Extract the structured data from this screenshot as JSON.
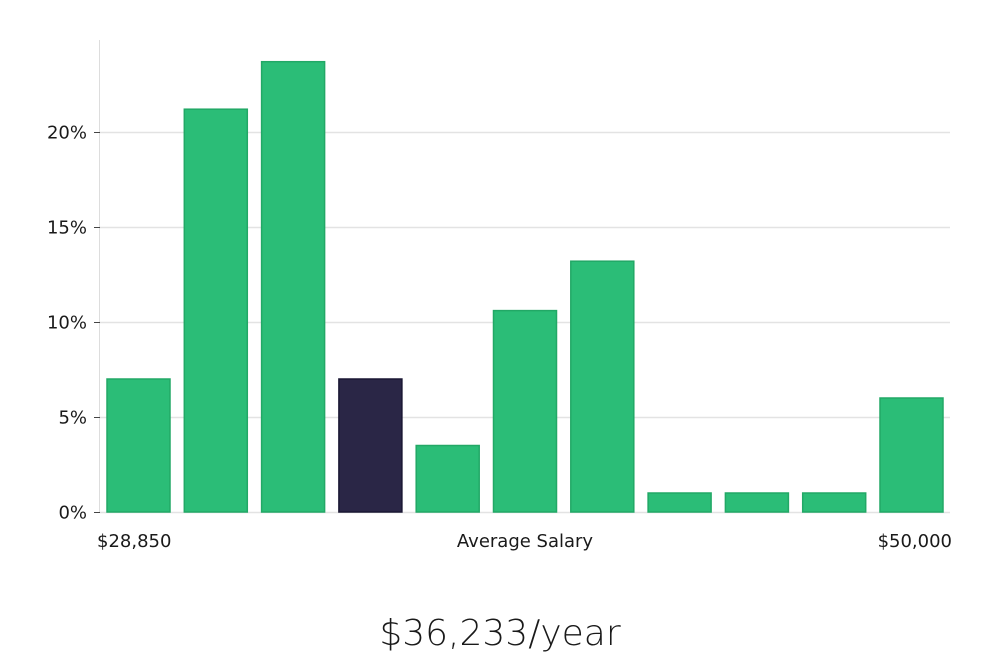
{
  "chart_data": {
    "type": "bar",
    "values": [
      7.0,
      21.2,
      23.7,
      7.0,
      3.5,
      10.6,
      13.2,
      1.0,
      1.0,
      1.0,
      6.0
    ],
    "highlight_index": 3,
    "ylim": [
      0,
      25
    ],
    "yticks": [
      0,
      5,
      10,
      15,
      20
    ],
    "ytick_labels": [
      "0%",
      "5%",
      "10%",
      "15%",
      "20%"
    ],
    "x_min_label": "$28,850",
    "x_center_label": "Average Salary",
    "x_max_label": "$50,000",
    "grid": true
  },
  "colors": {
    "bar": "#2bbd77",
    "bar_stroke": "#22a866",
    "highlight": "#2a2646",
    "grid": "#e3e3e3",
    "axis": "#dddddd"
  },
  "summary": {
    "salary_text": "$36,233/year"
  }
}
